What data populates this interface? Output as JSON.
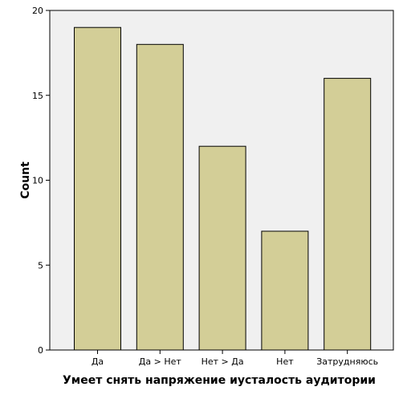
{
  "chart_data": {
    "type": "bar",
    "categories": [
      "Да",
      "Да > Нет",
      "Нет > Да",
      "Нет",
      "Затрудняюсь"
    ],
    "values": [
      19,
      18,
      12,
      7,
      16
    ],
    "xlabel": "Умеет снять напряжение иусталость аудитории",
    "ylabel": "Count",
    "ylim": [
      0,
      20
    ],
    "yticks": [
      0,
      5,
      10,
      15,
      20
    ],
    "grid": false,
    "colors": {
      "plot_background": "#f0f0f0",
      "bar_fill": "#d3ce97",
      "bar_stroke": "#000000"
    }
  }
}
